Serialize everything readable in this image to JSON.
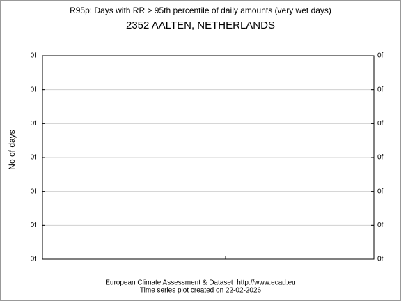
{
  "chart_data": {
    "type": "line",
    "title": "R95p: Days with RR > 95th percentile of daily amounts (very wet days)",
    "subtitle": "2352 AALTEN, NETHERLANDS",
    "ylabel": "No of days",
    "series": [],
    "ylim": [
      0,
      6
    ],
    "yticks": [
      {
        "value": 0,
        "label": "0f"
      },
      {
        "value": 1,
        "label": "0f"
      },
      {
        "value": 2,
        "label": "0f"
      },
      {
        "value": 3,
        "label": "0f"
      },
      {
        "value": 4,
        "label": "0f"
      },
      {
        "value": 5,
        "label": "0f"
      },
      {
        "value": 6,
        "label": "0f"
      }
    ],
    "grid": true,
    "annotations": [
      "European Climate Assessment & Dataset  http://www.ecad.eu",
      "Time series plot created on 22-02-2026"
    ]
  }
}
